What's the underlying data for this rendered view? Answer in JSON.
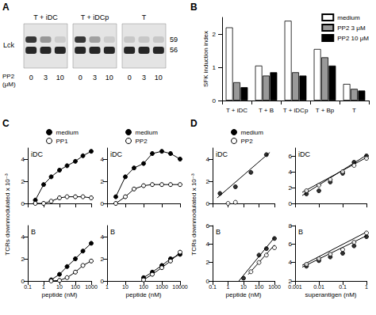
{
  "blot": {
    "panel": "A",
    "protein": "Lck",
    "lane_title": [
      "PP2",
      "(μM)"
    ],
    "markers": [
      59,
      56
    ],
    "groups": [
      {
        "label": "T + iDC",
        "lanes": [
          0,
          3,
          10
        ]
      },
      {
        "label": "T + iDCp",
        "lanes": [
          0,
          3,
          10
        ]
      },
      {
        "label": "T",
        "lanes": [
          0,
          3,
          10
        ]
      }
    ]
  },
  "chart_data": [
    {
      "panel": "B",
      "type": "bar",
      "categories": [
        "T + iDC",
        "T + B",
        "T + iDCp",
        "T + Bp",
        "T"
      ],
      "ylabel": "SFK induction index",
      "ylim": [
        0,
        2.5
      ],
      "yticks": [
        0,
        1,
        2
      ],
      "legend": "top-right",
      "series": [
        {
          "name": "medium",
          "color": "#ffffff",
          "values": [
            2.2,
            1.05,
            2.4,
            1.55,
            0.5
          ]
        },
        {
          "name": "PP2 3 μM",
          "color": "#999999",
          "values": [
            0.55,
            0.75,
            0.85,
            1.3,
            0.35
          ]
        },
        {
          "name": "PP2 10 μM",
          "color": "#000000",
          "values": [
            0.4,
            0.85,
            0.75,
            1.05,
            0.3
          ]
        }
      ]
    },
    {
      "panel": "C",
      "type": "line",
      "label": "iDC",
      "ylabel": "TCRs downmodulated x 10⁻³",
      "log": "x",
      "xlim": [
        0.1,
        1000
      ],
      "xticks": [
        0.1,
        1,
        10,
        100,
        1000
      ],
      "ylim": [
        0,
        5
      ],
      "yticks": [
        0,
        2,
        4
      ],
      "tick_labels": "y",
      "legend": "top",
      "series": [
        {
          "name": "medium",
          "color": "#000000",
          "marker": "circle",
          "x": [
            0.3,
            1,
            3,
            10,
            30,
            100,
            300,
            1000
          ],
          "values": [
            0.3,
            1.7,
            2.4,
            3.0,
            3.4,
            3.8,
            4.3,
            4.7
          ]
        },
        {
          "name": "PP1",
          "color": "#ffffff",
          "marker": "open circle",
          "x": [
            0.3,
            1,
            3,
            10,
            30,
            100,
            300,
            1000
          ],
          "values": [
            0,
            0,
            0.2,
            0.5,
            0.6,
            0.6,
            0.6,
            0.5
          ]
        }
      ]
    },
    {
      "type": "line",
      "label": "iDC",
      "log": "x",
      "xlim": [
        1,
        10000
      ],
      "xticks": [
        1,
        10,
        100,
        1000,
        10000
      ],
      "ylim": [
        0,
        5
      ],
      "yticks": [
        0,
        2,
        4
      ],
      "tick_labels": "y",
      "legend": "top",
      "series": [
        {
          "name": "medium",
          "color": "#000000",
          "marker": "circle",
          "x": [
            3,
            10,
            30,
            100,
            300,
            1000,
            3000,
            10000
          ],
          "values": [
            0.6,
            2.4,
            3.2,
            3.6,
            4.5,
            4.7,
            4.5,
            4.0
          ]
        },
        {
          "name": "PP2",
          "color": "#ffffff",
          "marker": "open circle",
          "x": [
            3,
            10,
            30,
            100,
            300,
            1000,
            3000,
            10000
          ],
          "values": [
            0,
            0.6,
            1.3,
            1.6,
            1.7,
            1.7,
            1.7,
            1.7
          ]
        }
      ]
    },
    {
      "type": "line",
      "label": "B",
      "log": "x",
      "xlabel": "peptide (nM)",
      "xlim": [
        0.1,
        1000
      ],
      "xticks": [
        0.1,
        1,
        10,
        100,
        1000
      ],
      "ylim": [
        0,
        5
      ],
      "yticks": [
        0,
        2,
        4
      ],
      "series": [
        {
          "name": "medium",
          "color": "#000000",
          "marker": "circle",
          "x": [
            3,
            10,
            30,
            100,
            300,
            1000
          ],
          "values": [
            0.1,
            0.6,
            1.3,
            2.0,
            2.7,
            3.4
          ]
        },
        {
          "name": "PP1",
          "color": "#ffffff",
          "marker": "open circle",
          "x": [
            3,
            10,
            30,
            100,
            300,
            1000
          ],
          "values": [
            0,
            0.05,
            0.3,
            0.8,
            1.4,
            1.8
          ]
        }
      ]
    },
    {
      "type": "line",
      "label": "B",
      "log": "x",
      "xlabel": "peptide (nM)",
      "xlim": [
        1,
        10000
      ],
      "xticks": [
        1,
        10,
        100,
        1000,
        10000
      ],
      "ylim": [
        0,
        5
      ],
      "yticks": [
        0,
        2,
        4
      ],
      "series": [
        {
          "name": "medium",
          "color": "#000000",
          "marker": "circle",
          "x": [
            100,
            300,
            1000,
            3000,
            10000
          ],
          "values": [
            0.3,
            0.8,
            1.4,
            2.0,
            2.4
          ]
        },
        {
          "name": "PP2",
          "color": "#ffffff",
          "marker": "open circle",
          "x": [
            100,
            300,
            1000,
            3000,
            10000
          ],
          "values": [
            0.1,
            0.6,
            1.2,
            1.8,
            2.6
          ]
        }
      ]
    },
    {
      "panel": "D",
      "type": "scatter",
      "label": "iDC",
      "ylabel": "TCRs downmodulated x 10⁻³",
      "log": "x",
      "xlim": [
        0.1,
        1000
      ],
      "xticks": [
        0.1,
        1,
        10,
        100,
        1000
      ],
      "ylim": [
        0,
        5
      ],
      "yticks": [
        0,
        2,
        4
      ],
      "tick_labels": "y",
      "legend": "top",
      "series": [
        {
          "name": "medium",
          "color": "#000000",
          "marker": "circle",
          "x": [
            0.3,
            3,
            30,
            300
          ],
          "values": [
            0.9,
            1.5,
            2.8,
            4.4
          ],
          "fit": {
            "x": [
              0.2,
              500
            ],
            "values": [
              0.5,
              4.6
            ]
          }
        },
        {
          "name": "PP2",
          "color": "#ffffff",
          "marker": "open circle",
          "x": [
            1,
            3
          ],
          "values": [
            0,
            0.1
          ]
        }
      ]
    },
    {
      "type": "scatter",
      "label": "iDC",
      "log": "x",
      "xlim": [
        0.001,
        1
      ],
      "xticks": [
        0.001,
        0.01,
        0.1,
        1
      ],
      "ylim": [
        0,
        7
      ],
      "yticks": [
        0,
        2,
        4,
        6
      ],
      "tick_labels": "y",
      "series": [
        {
          "name": "medium",
          "color": "#000000",
          "marker": "circle",
          "x": [
            0.003,
            0.01,
            0.03,
            0.1,
            0.3,
            1
          ],
          "values": [
            1.2,
            1.6,
            2.7,
            3.8,
            5.2,
            6.0
          ],
          "fit": {
            "x": [
              0.002,
              1
            ],
            "values": [
              1.0,
              6.1
            ]
          }
        },
        {
          "name": "PP2",
          "color": "#ffffff",
          "marker": "open circle",
          "x": [
            0.003,
            0.01,
            0.03,
            0.1,
            0.3,
            1
          ],
          "values": [
            1.6,
            2.3,
            3.0,
            4.0,
            4.8,
            5.7
          ],
          "fit": {
            "x": [
              0.002,
              1
            ],
            "values": [
              1.4,
              5.8
            ]
          }
        }
      ]
    },
    {
      "type": "scatter",
      "label": "B",
      "log": "x",
      "xlabel": "peptide (nM)",
      "xlim": [
        0.1,
        1000
      ],
      "xticks": [
        0.1,
        1,
        10,
        100,
        1000
      ],
      "ylim": [
        0,
        6
      ],
      "yticks": [
        0,
        2,
        4,
        6
      ],
      "series": [
        {
          "name": "medium",
          "color": "#000000",
          "marker": "circle",
          "x": [
            10,
            100,
            300,
            1000
          ],
          "values": [
            0.3,
            2.8,
            3.5,
            4.6
          ],
          "fit": {
            "x": [
              5,
              1000
            ],
            "values": [
              0,
              4.7
            ]
          }
        },
        {
          "name": "PP2",
          "color": "#ffffff",
          "marker": "open circle",
          "x": [
            30,
            100,
            300,
            1000
          ],
          "values": [
            1.0,
            2.0,
            2.8,
            3.6
          ],
          "fit": {
            "x": [
              20,
              1000
            ],
            "values": [
              0.7,
              3.9
            ]
          }
        }
      ]
    },
    {
      "type": "scatter",
      "label": "B",
      "log": "x",
      "xlabel": "superantigen (nM)",
      "xlim": [
        0.001,
        1
      ],
      "xticks": [
        0.001,
        0.01,
        0.1,
        1
      ],
      "ylim": [
        2,
        8
      ],
      "yticks": [
        2,
        4,
        6,
        8
      ],
      "series": [
        {
          "name": "medium",
          "color": "#000000",
          "marker": "circle",
          "x": [
            0.003,
            0.01,
            0.03,
            0.1,
            0.3,
            1
          ],
          "values": [
            3.6,
            4.2,
            4.6,
            5.0,
            5.8,
            6.8
          ],
          "fit": {
            "x": [
              0.002,
              1
            ],
            "values": [
              3.5,
              6.9
            ]
          }
        },
        {
          "name": "PP2",
          "color": "#ffffff",
          "marker": "open circle",
          "x": [
            0.003,
            0.01,
            0.03,
            0.1,
            0.3,
            1
          ],
          "values": [
            3.8,
            4.4,
            4.9,
            5.4,
            6.2,
            7.2
          ],
          "fit": {
            "x": [
              0.002,
              1
            ],
            "values": [
              3.7,
              7.3
            ]
          }
        }
      ]
    }
  ]
}
